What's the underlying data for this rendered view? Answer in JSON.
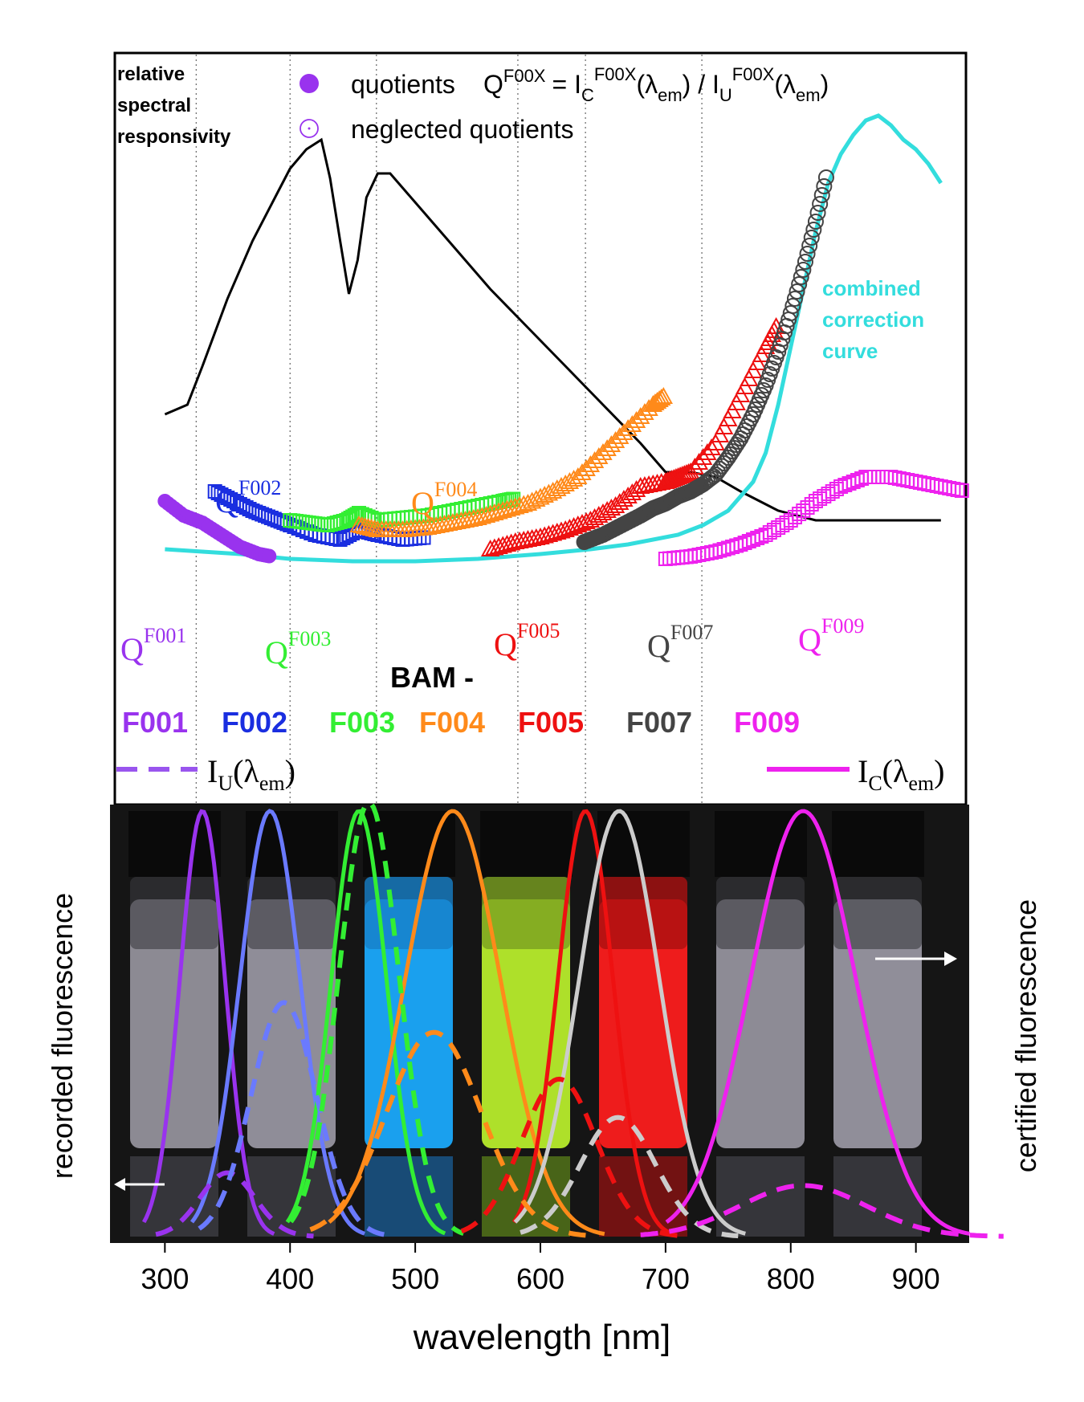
{
  "colors": {
    "F001": "#9933ee",
    "F002": "#1a2ee0",
    "F003": "#33ee33",
    "F004": "#ff8a1a",
    "F005": "#ee1111",
    "F007": "#444444",
    "F009": "#ee22ee",
    "correction": "#33dddd",
    "responsivity": "#000000"
  },
  "legend": {
    "responsivity_label_line1": "relative",
    "responsivity_label_line2": "spectral",
    "responsivity_label_line3": "responsivity",
    "quotients": "quotients",
    "neglected": "neglected quotients",
    "formula": {
      "Q": "Q",
      "sup1": "F00X",
      "eq": "= I",
      "subC": "C",
      "sup2": "F00X",
      "mid1": "(λ",
      "subem1": "em",
      "mid2": ") / I",
      "subU": "U",
      "sup3": "F00X",
      "mid3": "(λ",
      "subem2": "em",
      "end": ")"
    },
    "correction_line1": "combined",
    "correction_line2": "correction",
    "correction_line3": "curve"
  },
  "quotient_labels": [
    {
      "id": "F001",
      "q": "Q",
      "sup": "F001"
    },
    {
      "id": "F002",
      "q": "Q",
      "sup": "F002"
    },
    {
      "id": "F003",
      "q": "Q",
      "sup": "F003"
    },
    {
      "id": "F004",
      "q": "Q",
      "sup": "F004"
    },
    {
      "id": "F005",
      "q": "Q",
      "sup": "F005"
    },
    {
      "id": "F007",
      "q": "Q",
      "sup": "F007"
    },
    {
      "id": "F009",
      "q": "Q",
      "sup": "F009"
    }
  ],
  "bam": {
    "title": "BAM -",
    "names": [
      "F001",
      "F002",
      "F003",
      "F004",
      "F005",
      "F007",
      "F009"
    ]
  },
  "bottom_legend": {
    "IU": {
      "main": "I",
      "sub": "U",
      "open": "(λ",
      "sub2": "em",
      "close": ")"
    },
    "IC": {
      "main": "I",
      "sub": "C",
      "open": "(λ",
      "sub2": "em",
      "close": ")"
    }
  },
  "axes": {
    "xlabel": "wavelength [nm]",
    "left_label": "recorded fluorescence",
    "right_label": "certified fluorescence",
    "xticks": [
      "300",
      "400",
      "500",
      "600",
      "700",
      "800",
      "900"
    ]
  },
  "chart_data": {
    "type": "line",
    "xlim": [
      260,
      940
    ],
    "grid_x": [
      325,
      400,
      469,
      582,
      636,
      729
    ],
    "responsivity_curve": {
      "x": [
        300,
        318,
        330,
        350,
        370,
        390,
        400,
        413,
        425,
        432,
        440,
        447,
        454,
        461,
        470,
        480,
        500,
        530,
        560,
        590,
        620,
        650,
        680,
        700,
        720,
        740,
        760,
        790,
        820,
        860,
        900,
        920
      ],
      "y": [
        0.44,
        0.46,
        0.54,
        0.68,
        0.8,
        0.9,
        0.95,
        0.99,
        1.01,
        0.93,
        0.8,
        0.69,
        0.76,
        0.89,
        0.94,
        0.94,
        0.88,
        0.79,
        0.7,
        0.62,
        0.54,
        0.46,
        0.38,
        0.32,
        0.32,
        0.31,
        0.28,
        0.24,
        0.22,
        0.22,
        0.22,
        0.22
      ]
    },
    "correction_curve": {
      "x": [
        300,
        330,
        360,
        400,
        450,
        500,
        550,
        600,
        640,
        670,
        690,
        710,
        730,
        750,
        770,
        780,
        790,
        800,
        810,
        820,
        830,
        840,
        850,
        860,
        870,
        880,
        890,
        900,
        910,
        920
      ],
      "y": [
        0.16,
        0.155,
        0.15,
        0.14,
        0.135,
        0.135,
        0.14,
        0.15,
        0.16,
        0.17,
        0.18,
        0.19,
        0.21,
        0.24,
        0.3,
        0.36,
        0.46,
        0.58,
        0.7,
        0.82,
        0.92,
        0.98,
        1.02,
        1.05,
        1.06,
        1.04,
        1.01,
        0.99,
        0.96,
        0.92
      ]
    },
    "quotients": [
      {
        "id": "F001",
        "x": [
          300,
          315,
          330,
          345,
          360,
          375,
          385
        ],
        "y": [
          0.26,
          0.23,
          0.215,
          0.19,
          0.165,
          0.15,
          0.145
        ]
      },
      {
        "id": "F002",
        "x": [
          340,
          355,
          370,
          385,
          400,
          420,
          440,
          455,
          470,
          490,
          510
        ],
        "y": [
          0.28,
          0.26,
          0.24,
          0.225,
          0.21,
          0.19,
          0.18,
          0.2,
          0.19,
          0.18,
          0.185
        ]
      },
      {
        "id": "F003",
        "x": [
          400,
          415,
          430,
          445,
          455,
          470,
          490,
          510,
          530,
          550,
          570,
          580
        ],
        "y": [
          0.22,
          0.215,
          0.21,
          0.22,
          0.235,
          0.22,
          0.225,
          0.23,
          0.24,
          0.25,
          0.26,
          0.265
        ]
      },
      {
        "id": "F004",
        "x": [
          455,
          470,
          490,
          510,
          530,
          550,
          570,
          590,
          610,
          630,
          650,
          670,
          690,
          700
        ],
        "y": [
          0.21,
          0.2,
          0.2,
          0.205,
          0.215,
          0.225,
          0.24,
          0.255,
          0.28,
          0.31,
          0.36,
          0.41,
          0.46,
          0.48
        ]
      },
      {
        "id": "F005",
        "x": [
          560,
          580,
          600,
          620,
          640,
          660,
          680,
          700,
          710,
          720,
          740,
          760,
          780,
          790
        ],
        "y": [
          0.16,
          0.175,
          0.185,
          0.2,
          0.22,
          0.25,
          0.29,
          0.3,
          0.31,
          0.32,
          0.38,
          0.48,
          0.58,
          0.63
        ]
      },
      {
        "id": "F007",
        "x": [
          635,
          650,
          665,
          680,
          690,
          700,
          710,
          720,
          730,
          740,
          750,
          760,
          770,
          780,
          790,
          800,
          810,
          820,
          830
        ],
        "y": [
          0.175,
          0.19,
          0.21,
          0.23,
          0.245,
          0.255,
          0.27,
          0.28,
          0.295,
          0.315,
          0.35,
          0.39,
          0.44,
          0.5,
          0.57,
          0.65,
          0.74,
          0.84,
          0.95
        ]
      },
      {
        "id": "F009",
        "x": [
          700,
          720,
          740,
          760,
          780,
          800,
          820,
          840,
          860,
          880,
          900,
          920,
          940
        ],
        "y": [
          0.14,
          0.145,
          0.155,
          0.17,
          0.19,
          0.22,
          0.26,
          0.29,
          0.31,
          0.31,
          0.3,
          0.29,
          0.28
        ]
      }
    ],
    "emission_certified": [
      {
        "id": "F001",
        "peak": 330,
        "sigma": 18
      },
      {
        "id": "F002",
        "peak": 384,
        "sigma": 24
      },
      {
        "id": "F003",
        "peak": 455,
        "sigma": 22
      },
      {
        "id": "F004",
        "peak": 530,
        "sigma": 38
      },
      {
        "id": "F005",
        "peak": 636,
        "sigma": 22
      },
      {
        "id": "F007",
        "peak": 663,
        "sigma": 32
      },
      {
        "id": "F009",
        "peak": 810,
        "sigma": 42
      }
    ],
    "emission_recorded": [
      {
        "id": "F001",
        "peak": 350,
        "amp": 0.15,
        "sigma": 22
      },
      {
        "id": "F002",
        "peak": 395,
        "amp": 0.55,
        "sigma": 26
      },
      {
        "id": "F003",
        "peak": 463,
        "amp": 1.02,
        "sigma": 24
      },
      {
        "id": "F004",
        "peak": 515,
        "amp": 0.48,
        "sigma": 38
      },
      {
        "id": "F005",
        "peak": 615,
        "amp": 0.37,
        "sigma": 30
      },
      {
        "id": "F007",
        "peak": 662,
        "amp": 0.28,
        "sigma": 30
      },
      {
        "id": "F009",
        "peak": 810,
        "amp": 0.12,
        "sigma": 50
      }
    ]
  }
}
